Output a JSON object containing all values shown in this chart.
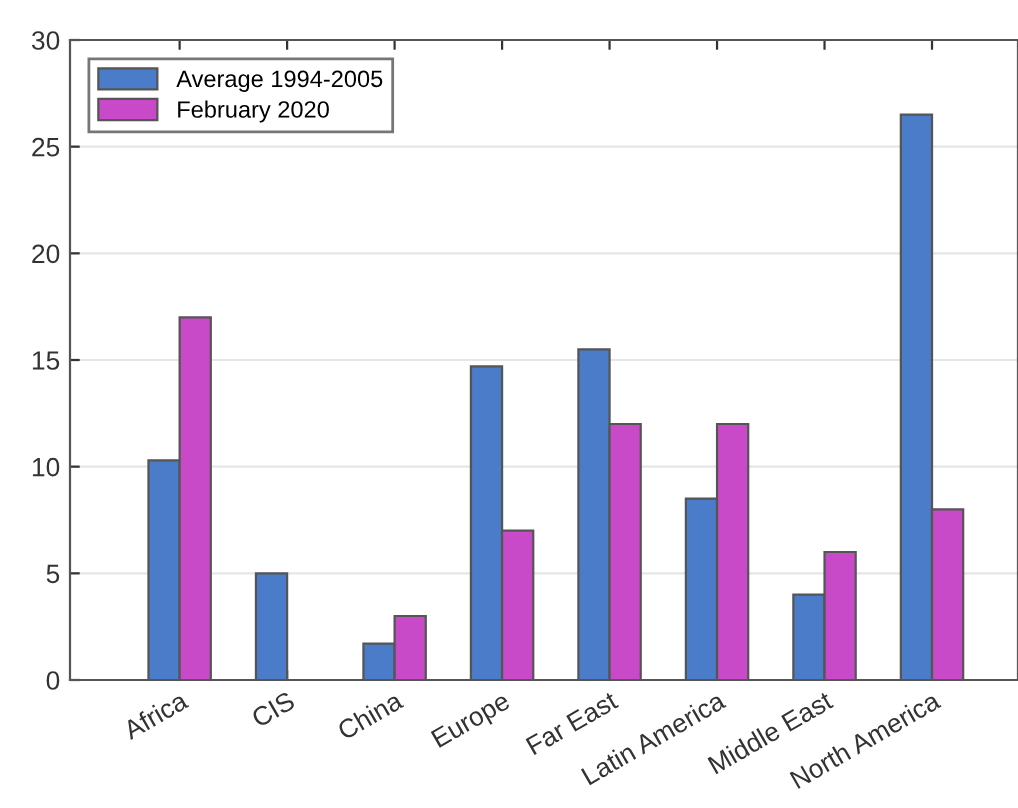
{
  "chart_data": {
    "type": "bar",
    "categories": [
      "Africa",
      "CIS",
      "China",
      "Europe",
      "Far East",
      "Latin America",
      "Middle East",
      "North America"
    ],
    "series": [
      {
        "name": "Average 1994-2005",
        "color": "#4a7cc9",
        "values": [
          10.3,
          5,
          1.7,
          14.7,
          15.5,
          8.5,
          4,
          26.5
        ]
      },
      {
        "name": "February 2020",
        "color": "#c94ac9",
        "values": [
          17,
          null,
          3,
          7,
          12,
          12,
          6,
          8
        ]
      }
    ],
    "ylim": [
      0,
      30
    ],
    "yticks": [
      0,
      5,
      10,
      15,
      20,
      25,
      30
    ],
    "grid": "y",
    "legend": "top left"
  }
}
